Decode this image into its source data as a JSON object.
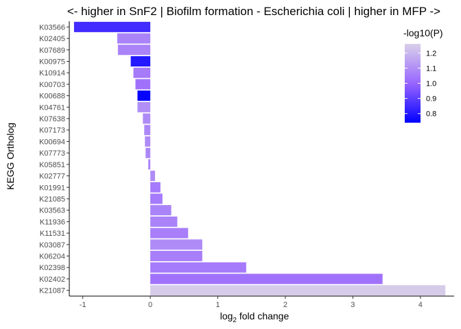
{
  "chart_data": {
    "type": "bar",
    "orientation": "horizontal",
    "title": "<- higher in SnF2 | Biofilm formation - Escherichia coli | higher in MFP ->",
    "xlabel_base": "log",
    "xlabel_sub": "2",
    "xlabel_rest": " fold change",
    "ylabel": "KEGG Ortholog",
    "xlim": [
      -1.2,
      4.5
    ],
    "x_ticks": [
      -1,
      0,
      1,
      2,
      3,
      4
    ],
    "x_tick_labels": [
      "-1",
      "0",
      "1",
      "2",
      "3",
      "4"
    ],
    "grid": false,
    "categories": [
      "K03566",
      "K02405",
      "K07689",
      "K00975",
      "K10914",
      "K00703",
      "K00688",
      "K04761",
      "K07638",
      "K07173",
      "K00694",
      "K07773",
      "K05851",
      "K02777",
      "K01991",
      "K21085",
      "K03563",
      "K11936",
      "K11531",
      "K03087",
      "K06204",
      "K02398",
      "K02402",
      "K21087"
    ],
    "values": [
      -1.13,
      -0.49,
      -0.48,
      -0.29,
      -0.25,
      -0.22,
      -0.19,
      -0.19,
      -0.11,
      -0.09,
      -0.08,
      -0.07,
      -0.03,
      0.07,
      0.15,
      0.18,
      0.31,
      0.4,
      0.56,
      0.77,
      0.77,
      1.42,
      3.44,
      4.37
    ],
    "neg_log10_p": [
      0.85,
      1.07,
      1.07,
      0.8,
      1.05,
      1.03,
      0.75,
      1.1,
      1.09,
      1.08,
      1.09,
      1.08,
      1.07,
      1.09,
      1.05,
      1.05,
      1.07,
      1.07,
      1.06,
      1.09,
      1.06,
      1.05,
      1.03,
      1.25
    ],
    "legend": {
      "title": "-log10(P)",
      "position": "top-right",
      "range": [
        0.74,
        1.26
      ],
      "ticks": [
        0.8,
        0.9,
        1.0,
        1.1,
        1.2
      ],
      "tick_labels": [
        "0.8",
        "0.9",
        "1.0",
        "1.1",
        "1.2"
      ],
      "color_low": "#0000FF",
      "color_mid": "#9966FF",
      "color_high": "#D8D0E8"
    }
  }
}
